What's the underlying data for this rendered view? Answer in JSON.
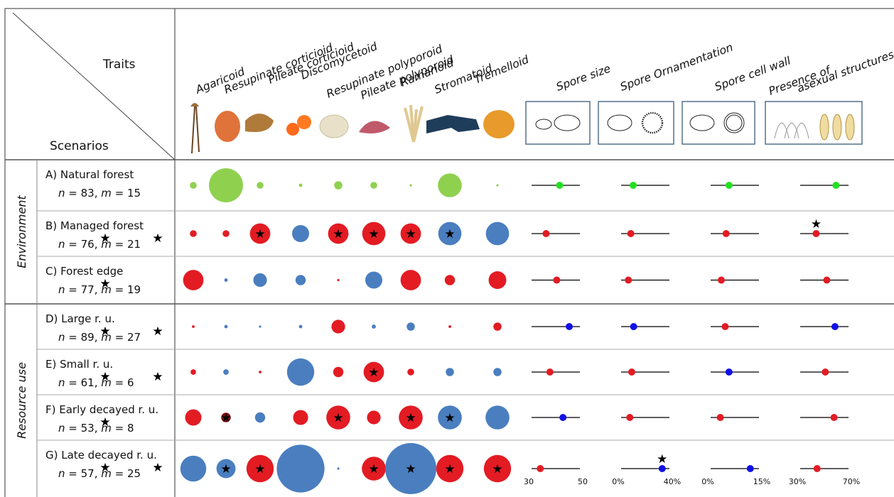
{
  "header": {
    "traits_label": "Traits",
    "scenarios_label": "Scenarios"
  },
  "morphotypes": [
    "Agaricoid",
    "Resupinate corticioid",
    "Pileate corticioid",
    "Discomycetoid",
    "Resupinate polyporoid",
    "Pileate polyporoid",
    "Ramarioid",
    "Stromatoid",
    "Tremelloid"
  ],
  "continuous_traits": [
    {
      "label": "Spore size",
      "sketch": "spore-size-sketch"
    },
    {
      "label": "Spore  Ornamentation",
      "sketch": "spore-ornamentation-sketch"
    },
    {
      "label": "Spore cell wall",
      "sketch": "spore-cell-wall-sketch"
    },
    {
      "label": "Presence of asexual structures",
      "line1": "Presence of",
      "line2": "asexual structures",
      "sketch": "asexual-structures-sketch"
    }
  ],
  "groups": [
    {
      "label": "Environment",
      "rows": [
        0,
        1,
        2
      ]
    },
    {
      "label": "Resource use",
      "rows": [
        3,
        4,
        5,
        6
      ]
    }
  ],
  "colors": {
    "positive": "#e31b23",
    "negative": "#4a7ebf",
    "natural": "#8fd14f",
    "natural_dot": "#22e022",
    "line": "#000000"
  },
  "scale_ticks": [
    [
      "30",
      "50"
    ],
    [
      "0%",
      "40%"
    ],
    [
      "0%",
      "15%"
    ],
    [
      "30%",
      "70%"
    ]
  ],
  "rows": [
    {
      "name": "A) Natural forest",
      "n": "83",
      "m": "15",
      "bubbles": [
        {
          "s": 1,
          "c": "natural",
          "star": false
        },
        {
          "s": 5,
          "c": "natural",
          "star": false
        },
        {
          "s": 1,
          "c": "natural",
          "star": false
        },
        {
          "s": 0.5,
          "c": "natural",
          "star": false
        },
        {
          "s": 1.2,
          "c": "natural",
          "star": false
        },
        {
          "s": 1,
          "c": "natural",
          "star": false
        },
        {
          "s": 0.3,
          "c": "natural",
          "star": false
        },
        {
          "s": 3.5,
          "c": "natural",
          "star": false
        },
        {
          "s": 0.3,
          "c": "natural",
          "star": false
        }
      ],
      "dots": [
        {
          "f": 0.58,
          "c": "natural_dot",
          "star": false
        },
        {
          "f": 0.25,
          "c": "natural_dot",
          "star": false
        },
        {
          "f": 0.38,
          "c": "natural_dot",
          "star": false
        },
        {
          "f": 0.74,
          "c": "natural_dot",
          "star": false
        }
      ],
      "label_stars": []
    },
    {
      "name": "B) Managed forest",
      "n": "76",
      "m": "21",
      "bubbles": [
        {
          "s": 1,
          "c": "positive",
          "star": false
        },
        {
          "s": 1,
          "c": "positive",
          "star": false
        },
        {
          "s": 3,
          "c": "positive",
          "star": true
        },
        {
          "s": 2.5,
          "c": "negative",
          "star": false
        },
        {
          "s": 3,
          "c": "positive",
          "star": true
        },
        {
          "s": 3.4,
          "c": "positive",
          "star": true
        },
        {
          "s": 3,
          "c": "positive",
          "star": true
        },
        {
          "s": 3.4,
          "c": "negative",
          "star": true
        },
        {
          "s": 3.4,
          "c": "negative",
          "star": false
        }
      ],
      "dots": [
        {
          "f": 0.3,
          "c": "positive",
          "star": false
        },
        {
          "f": 0.2,
          "c": "positive",
          "star": false
        },
        {
          "f": 0.32,
          "c": "positive",
          "star": false
        },
        {
          "f": 0.33,
          "c": "positive",
          "star": true
        }
      ],
      "label_stars": [
        "n",
        "m"
      ]
    },
    {
      "name": "C) Forest edge",
      "n": "77",
      "m": "19",
      "bubbles": [
        {
          "s": 3,
          "c": "positive",
          "star": false
        },
        {
          "s": 0.5,
          "c": "negative",
          "star": false
        },
        {
          "s": 2,
          "c": "negative",
          "star": false
        },
        {
          "s": 1.5,
          "c": "negative",
          "star": false
        },
        {
          "s": 0.3,
          "c": "positive",
          "star": false
        },
        {
          "s": 2.5,
          "c": "negative",
          "star": false
        },
        {
          "s": 3,
          "c": "positive",
          "star": false
        },
        {
          "s": 1.5,
          "c": "positive",
          "star": false
        },
        {
          "s": 2.6,
          "c": "positive",
          "star": false
        }
      ],
      "dots": [
        {
          "f": 0.52,
          "c": "positive",
          "star": false
        },
        {
          "f": 0.15,
          "c": "positive",
          "star": false
        },
        {
          "f": 0.22,
          "c": "positive",
          "star": false
        },
        {
          "f": 0.55,
          "c": "positive",
          "star": false
        }
      ],
      "label_stars": [
        "n"
      ]
    },
    {
      "name": "D) Large r. u.",
      "n": "89",
      "m": "27",
      "bubbles": [
        {
          "s": 0.4,
          "c": "positive",
          "star": false
        },
        {
          "s": 0.5,
          "c": "negative",
          "star": false
        },
        {
          "s": 0.3,
          "c": "negative",
          "star": false
        },
        {
          "s": 0.5,
          "c": "negative",
          "star": false
        },
        {
          "s": 2,
          "c": "positive",
          "star": false
        },
        {
          "s": 0.6,
          "c": "negative",
          "star": false
        },
        {
          "s": 1.2,
          "c": "negative",
          "star": false
        },
        {
          "s": 0.4,
          "c": "positive",
          "star": false
        },
        {
          "s": 1.2,
          "c": "positive",
          "star": false
        }
      ],
      "dots": [
        {
          "f": 0.78,
          "c": "blue_dot",
          "star": false
        },
        {
          "f": 0.26,
          "c": "blue_dot",
          "star": false
        },
        {
          "f": 0.3,
          "c": "positive",
          "star": false
        },
        {
          "f": 0.72,
          "c": "blue_dot",
          "star": false
        }
      ],
      "label_stars": [
        "n",
        "m"
      ]
    },
    {
      "name": "E) Small r. u.",
      "n": "61",
      "m": "6",
      "bubbles": [
        {
          "s": 0.8,
          "c": "positive",
          "star": false
        },
        {
          "s": 0.8,
          "c": "negative",
          "star": false
        },
        {
          "s": 0.4,
          "c": "positive",
          "star": false
        },
        {
          "s": 4,
          "c": "negative",
          "star": false
        },
        {
          "s": 1.5,
          "c": "positive",
          "star": false
        },
        {
          "s": 3,
          "c": "positive",
          "star": true
        },
        {
          "s": 1,
          "c": "positive",
          "star": false
        },
        {
          "s": 1.2,
          "c": "negative",
          "star": false
        },
        {
          "s": 1.2,
          "c": "negative",
          "star": false
        }
      ],
      "dots": [
        {
          "f": 0.38,
          "c": "positive",
          "star": false
        },
        {
          "f": 0.22,
          "c": "positive",
          "star": false
        },
        {
          "f": 0.38,
          "c": "blue_dot",
          "star": false
        },
        {
          "f": 0.52,
          "c": "positive",
          "star": false
        }
      ],
      "label_stars": [
        "n",
        "m"
      ]
    },
    {
      "name": "F) Early decayed r. u.",
      "n": "53",
      "m": "8",
      "bubbles": [
        {
          "s": 2.4,
          "c": "positive",
          "star": false
        },
        {
          "s": 1.4,
          "c": "dark_red",
          "star": true
        },
        {
          "s": 1.5,
          "c": "negative",
          "star": false
        },
        {
          "s": 2.2,
          "c": "positive",
          "star": false
        },
        {
          "s": 3.5,
          "c": "positive",
          "star": true
        },
        {
          "s": 2,
          "c": "positive",
          "star": false
        },
        {
          "s": 3.5,
          "c": "positive",
          "star": true
        },
        {
          "s": 3.5,
          "c": "negative",
          "star": true
        },
        {
          "s": 3.5,
          "c": "negative",
          "star": false
        }
      ],
      "dots": [
        {
          "f": 0.65,
          "c": "blue_dot",
          "star": false
        },
        {
          "f": 0.18,
          "c": "positive",
          "star": false
        },
        {
          "f": 0.2,
          "c": "positive",
          "star": false
        },
        {
          "f": 0.7,
          "c": "positive",
          "star": false
        }
      ],
      "label_stars": [
        "n"
      ]
    },
    {
      "name": "G) Late decayed r. u.",
      "n": "57",
      "m": "25",
      "bubbles": [
        {
          "s": 3.8,
          "c": "negative",
          "star": false
        },
        {
          "s": 2.8,
          "c": "negative",
          "star": true
        },
        {
          "s": 4,
          "c": "positive",
          "star": true
        },
        {
          "s": 7,
          "c": "negative",
          "star": false
        },
        {
          "s": 0.3,
          "c": "negative",
          "star": false
        },
        {
          "s": 3.5,
          "c": "positive",
          "star": true
        },
        {
          "s": 7.5,
          "c": "negative",
          "star": true
        },
        {
          "s": 4,
          "c": "positive",
          "star": true
        },
        {
          "s": 4,
          "c": "positive",
          "star": true
        }
      ],
      "dots": [
        {
          "f": 0.18,
          "c": "positive",
          "star": false
        },
        {
          "f": 0.85,
          "c": "blue_dot",
          "star": true
        },
        {
          "f": 0.82,
          "c": "blue_dot",
          "star": false
        },
        {
          "f": 0.35,
          "c": "positive",
          "star": false
        }
      ],
      "label_stars": [
        "n",
        "m"
      ]
    }
  ]
}
